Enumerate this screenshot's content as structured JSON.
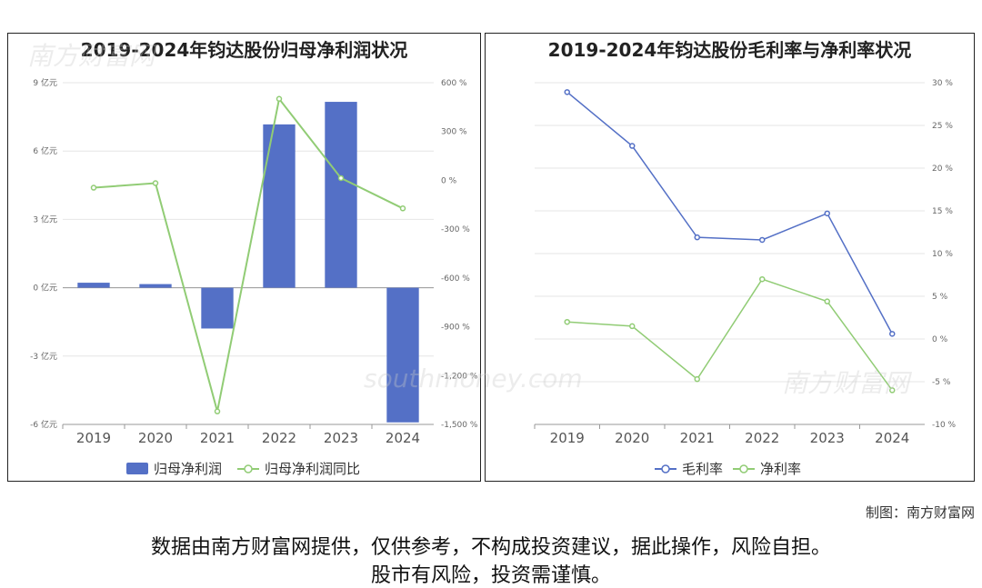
{
  "charts": {
    "left_title": "2019-2024年钧达股份归母净利润状况",
    "right_title": "2019-2024年钧达股份毛利率与净利率状况"
  },
  "footer": {
    "credit": "制图：南方财富网",
    "disclaimer_line1": "数据由南方财富网提供，仅供参考，不构成投资建议，据此操作，风险自担。",
    "disclaimer_line2": "股市有风险，投资需谨慎。"
  },
  "watermark": {
    "cn": "南方财富网",
    "en": "southmoney.com"
  },
  "colors": {
    "bar": "#5470c6",
    "green": "#91cc75",
    "blue": "#5470c6",
    "grid": "#e6e6e6",
    "axis": "#999999"
  },
  "chart_data": [
    {
      "type": "bar",
      "title": "2019-2024年钧达股份归母净利润状况",
      "categories": [
        "2019",
        "2020",
        "2021",
        "2022",
        "2023",
        "2024"
      ],
      "series": [
        {
          "name": "归母净利润",
          "kind": "bar",
          "axis": "left",
          "values": [
            0.22,
            0.16,
            -1.79,
            7.17,
            8.16,
            -5.91
          ]
        },
        {
          "name": "归母净利润同比",
          "kind": "line",
          "axis": "right",
          "values": [
            -45.35,
            -17.5,
            -1420.0,
            500.52,
            13.84,
            -172.4
          ]
        }
      ],
      "y_left": {
        "ticks": [
          9,
          6,
          3,
          0,
          -3,
          -6
        ],
        "tick_labels": [
          "9 亿元",
          "6 亿元",
          "3 亿元",
          "0 亿元",
          "-3 亿元",
          "-6 亿元"
        ],
        "range": [
          -6,
          9
        ]
      },
      "y_right": {
        "ticks": [
          600,
          300,
          0,
          -300,
          -600,
          -900,
          -1200,
          -1500
        ],
        "tick_labels": [
          "600 %",
          "300 %",
          "0 %",
          "-300 %",
          "-600 %",
          "-900 %",
          "-1,200 %",
          "-1,500 %"
        ],
        "range": [
          -1500,
          600
        ]
      },
      "legend_position": "bottom",
      "grid": true
    },
    {
      "type": "line",
      "title": "2019-2024年钧达股份毛利率与净利率状况",
      "categories": [
        "2019",
        "2020",
        "2021",
        "2022",
        "2023",
        "2024"
      ],
      "series": [
        {
          "name": "毛利率",
          "color": "#5470c6",
          "values": [
            28.9,
            22.6,
            11.9,
            11.6,
            14.7,
            0.6
          ]
        },
        {
          "name": "净利率",
          "color": "#91cc75",
          "values": [
            2.0,
            1.5,
            -4.7,
            7.0,
            4.4,
            -6.0
          ]
        }
      ],
      "y_right": {
        "ticks": [
          30,
          25,
          20,
          15,
          10,
          5,
          0,
          -5,
          -10
        ],
        "tick_labels": [
          "30 %",
          "25 %",
          "20 %",
          "15 %",
          "10 %",
          "5 %",
          "0 %",
          "-5 %",
          "-10 %"
        ],
        "range": [
          -10,
          30
        ]
      },
      "legend_position": "bottom",
      "grid": true
    }
  ]
}
